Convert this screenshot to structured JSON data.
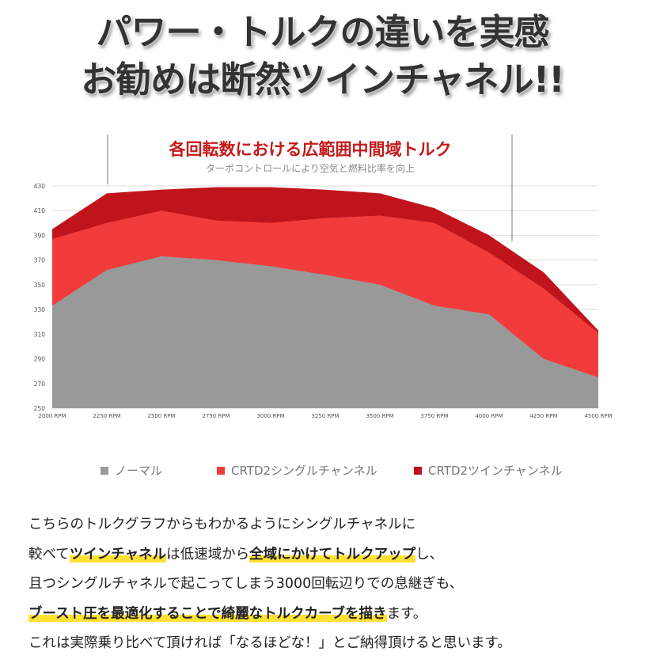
{
  "headline": {
    "line1": "パワー・トルクの違いを実感",
    "line2": "お勧めは断然ツインチャネル!!"
  },
  "colors": {
    "normal": "#999999",
    "single": "#f23c3c",
    "twin": "#c0141c",
    "title": "#c41a1a",
    "highlight": "#ffe033"
  },
  "chart_data": {
    "type": "area",
    "title": "各回転数における広範囲中間域トルク",
    "subtitle": "ターボコントロールにより空気と燃料比率を向上",
    "x": [
      "2000 RPM",
      "2250 RPM",
      "2500 RPM",
      "2750 RPM",
      "3000 RPM",
      "3250 RPM",
      "3500 RPM",
      "3750 RPM",
      "4000 RPM",
      "4250 RPM",
      "4500 RPM"
    ],
    "ylim": [
      250,
      430
    ],
    "yticks": [
      250,
      270,
      290,
      310,
      330,
      350,
      370,
      390,
      410,
      430
    ],
    "grid": true,
    "legend_position": "bottom",
    "series": [
      {
        "name": "ノーマル",
        "values": [
          333,
          362,
          373,
          370,
          365,
          358,
          350,
          333,
          326,
          290,
          275
        ]
      },
      {
        "name": "CRTD2シングルチャンネル",
        "values": [
          387,
          400,
          410,
          402,
          400,
          404,
          406,
          400,
          376,
          347,
          311
        ]
      },
      {
        "name": "CRTD2ツインチャンネル",
        "values": [
          395,
          424,
          427,
          429,
          429,
          427,
          424,
          412,
          390,
          360,
          313
        ]
      }
    ]
  },
  "body": {
    "l1": "こちらのトルクグラフからもわかるようにシングルチャネルに",
    "l2a": "較べて",
    "l2b": "ツインチャネル",
    "l2c": "は低速域から",
    "l2d": "全域にかけてトルクアップ",
    "l2e": "し、",
    "l3": "且つシングルチャネルで起こってしまう3000回転辺りでの息継ぎも、",
    "l4a": "ブースト圧を最適化することで綺麗なトルクカーブを描き",
    "l4b": "ます。",
    "l5": "これは実際乗り比べて頂ければ「なるほどな！」とご納得頂けると思います。"
  }
}
